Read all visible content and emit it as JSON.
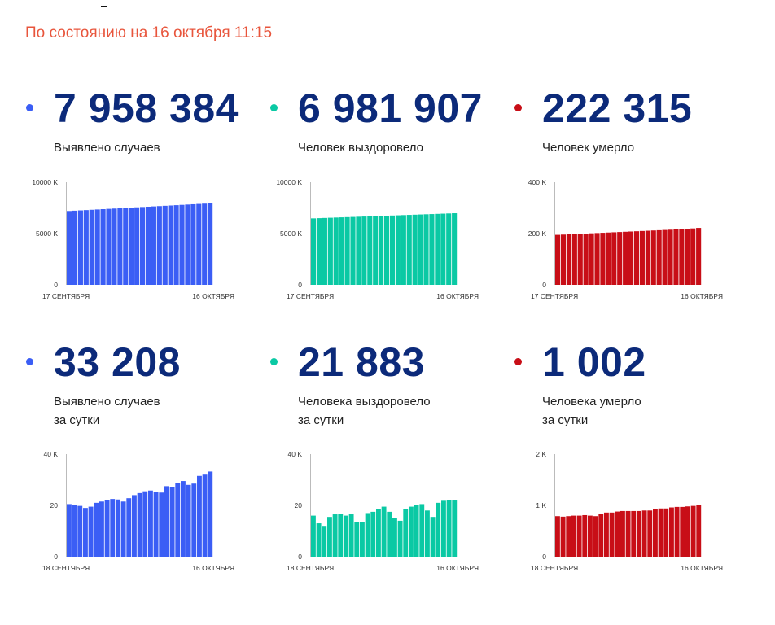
{
  "header": {
    "as_of": "По состоянию на 16 октября 11:15"
  },
  "colors": {
    "cases": "#3b5ef5",
    "recovered": "#0ac9a4",
    "deaths": "#c80e17",
    "number": "#0c2a7a",
    "header": "#e8553c"
  },
  "stats": {
    "total_cases": {
      "value": "7 958 384",
      "label": "Выявлено случаев"
    },
    "total_recovered": {
      "value": "6 981 907",
      "label": "Человек выздоровело"
    },
    "total_deaths": {
      "value": "222 315",
      "label": "Человек умерло"
    },
    "daily_cases": {
      "value": "33 208",
      "label_line1": "Выявлено случаев",
      "label_line2": "за сутки"
    },
    "daily_recovered": {
      "value": "21 883",
      "label_line1": "Человека выздоровело",
      "label_line2": "за сутки"
    },
    "daily_deaths": {
      "value": "1 002",
      "label_line1": "Человека умерло",
      "label_line2": "за сутки"
    }
  },
  "chart_data": [
    {
      "id": "total_cases",
      "type": "bar",
      "title": "Выявлено случаев",
      "color": "#3b5ef5",
      "unit": "K",
      "ylim": [
        0,
        10000
      ],
      "y_ticks": [
        0,
        5000,
        10000
      ],
      "y_tick_labels": [
        "0",
        "5000 K",
        "10000 K"
      ],
      "x_start_label": "17 СЕНТЯБРЯ",
      "x_end_label": "16 ОКТЯБРЯ",
      "values": [
        7200,
        7230,
        7260,
        7290,
        7320,
        7350,
        7380,
        7410,
        7440,
        7470,
        7500,
        7530,
        7560,
        7590,
        7620,
        7650,
        7680,
        7710,
        7740,
        7770,
        7800,
        7830,
        7860,
        7890,
        7920,
        7958
      ]
    },
    {
      "id": "total_recovered",
      "type": "bar",
      "title": "Человек выздоровело",
      "color": "#0ac9a4",
      "unit": "K",
      "ylim": [
        0,
        10000
      ],
      "y_ticks": [
        0,
        5000,
        10000
      ],
      "y_tick_labels": [
        "0",
        "5000 K",
        "10000 K"
      ],
      "x_start_label": "17 СЕНТЯБРЯ",
      "x_end_label": "16 ОКТЯБРЯ",
      "values": [
        6480,
        6500,
        6520,
        6540,
        6560,
        6580,
        6600,
        6620,
        6640,
        6660,
        6680,
        6700,
        6720,
        6740,
        6760,
        6780,
        6800,
        6820,
        6840,
        6860,
        6880,
        6900,
        6920,
        6940,
        6960,
        6982
      ]
    },
    {
      "id": "total_deaths",
      "type": "bar",
      "title": "Человек умерло",
      "color": "#c80e17",
      "unit": "K",
      "ylim": [
        0,
        400
      ],
      "y_ticks": [
        0,
        200,
        400
      ],
      "y_tick_labels": [
        "0",
        "200 K",
        "400 K"
      ],
      "x_start_label": "17 СЕНТЯБРЯ",
      "x_end_label": "16 ОКТЯБРЯ",
      "values": [
        195,
        196,
        197,
        198,
        199,
        200,
        201,
        202,
        203,
        204,
        205,
        206,
        207,
        208,
        209,
        210,
        211,
        212,
        213,
        214,
        215,
        216,
        217,
        219,
        220,
        222
      ]
    },
    {
      "id": "daily_cases",
      "type": "bar",
      "title": "Выявлено случаев за сутки",
      "color": "#3b5ef5",
      "unit": "K",
      "ylim": [
        0,
        40
      ],
      "y_ticks": [
        0,
        20,
        40
      ],
      "y_tick_labels": [
        "0",
        "20",
        "40 K"
      ],
      "x_start_label": "18 СЕНТЯБРЯ",
      "x_end_label": "16 ОКТЯБРЯ",
      "values": [
        20.5,
        20.2,
        19.8,
        19.0,
        19.5,
        21.0,
        21.5,
        22.0,
        22.5,
        22.3,
        21.5,
        22.8,
        24.0,
        24.8,
        25.5,
        25.8,
        25.2,
        25.0,
        27.5,
        27.0,
        28.8,
        29.5,
        28.0,
        28.5,
        31.5,
        32.0,
        33.2
      ]
    },
    {
      "id": "daily_recovered",
      "type": "bar",
      "title": "Человека выздоровело за сутки",
      "color": "#0ac9a4",
      "unit": "K",
      "ylim": [
        0,
        40
      ],
      "y_ticks": [
        0,
        20,
        40
      ],
      "y_tick_labels": [
        "0",
        "20",
        "40 K"
      ],
      "x_start_label": "18 СЕНТЯБРЯ",
      "x_end_label": "16 ОКТЯБРЯ",
      "values": [
        16.0,
        13.0,
        12.0,
        15.5,
        16.5,
        16.8,
        16.0,
        16.5,
        13.5,
        13.5,
        17.0,
        17.5,
        18.5,
        19.5,
        17.5,
        15.0,
        14.0,
        18.5,
        19.5,
        20.0,
        20.5,
        18.0,
        15.5,
        21.0,
        21.8,
        22.0,
        21.9
      ]
    },
    {
      "id": "daily_deaths",
      "type": "bar",
      "title": "Человека умерло за сутки",
      "color": "#c80e17",
      "unit": "K",
      "ylim": [
        0,
        2
      ],
      "y_ticks": [
        0,
        1,
        2
      ],
      "y_tick_labels": [
        "0",
        "1 K",
        "2 K"
      ],
      "x_start_label": "18 СЕНТЯБРЯ",
      "x_end_label": "16 ОКТЯБРЯ",
      "values": [
        0.79,
        0.78,
        0.79,
        0.8,
        0.8,
        0.81,
        0.8,
        0.79,
        0.84,
        0.86,
        0.86,
        0.88,
        0.89,
        0.89,
        0.89,
        0.89,
        0.9,
        0.9,
        0.93,
        0.94,
        0.94,
        0.96,
        0.97,
        0.97,
        0.98,
        0.99,
        1.0
      ]
    }
  ]
}
